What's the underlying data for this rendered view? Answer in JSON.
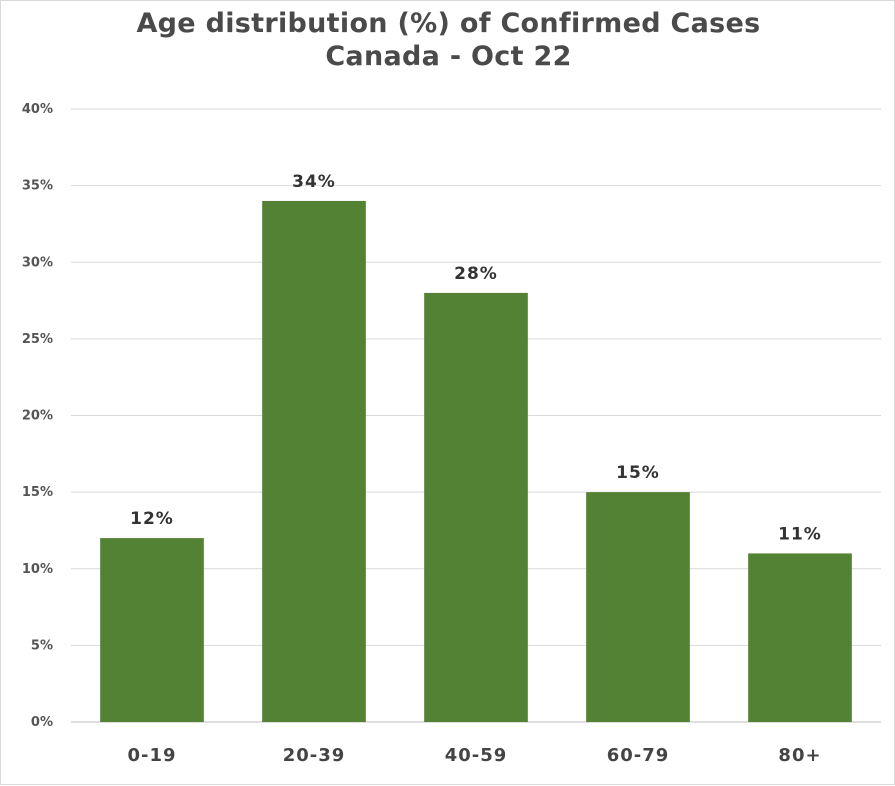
{
  "chart_data": {
    "type": "bar",
    "title": "Age distribution (%) of Confirmed Cases",
    "subtitle": "Canada - Oct 22",
    "categories": [
      "0-19",
      "20-39",
      "40-59",
      "60-79",
      "80+"
    ],
    "values": [
      12,
      34,
      28,
      15,
      11
    ],
    "data_labels": [
      "12%",
      "34%",
      "28%",
      "15%",
      "11%"
    ],
    "y_ticks": [
      "0%",
      "5%",
      "10%",
      "15%",
      "20%",
      "25%",
      "30%",
      "35%",
      "40%"
    ],
    "ylim": [
      0,
      40
    ],
    "xlabel": "",
    "ylabel": "",
    "grid": true,
    "legend": "none",
    "bar_color": "#548235"
  }
}
